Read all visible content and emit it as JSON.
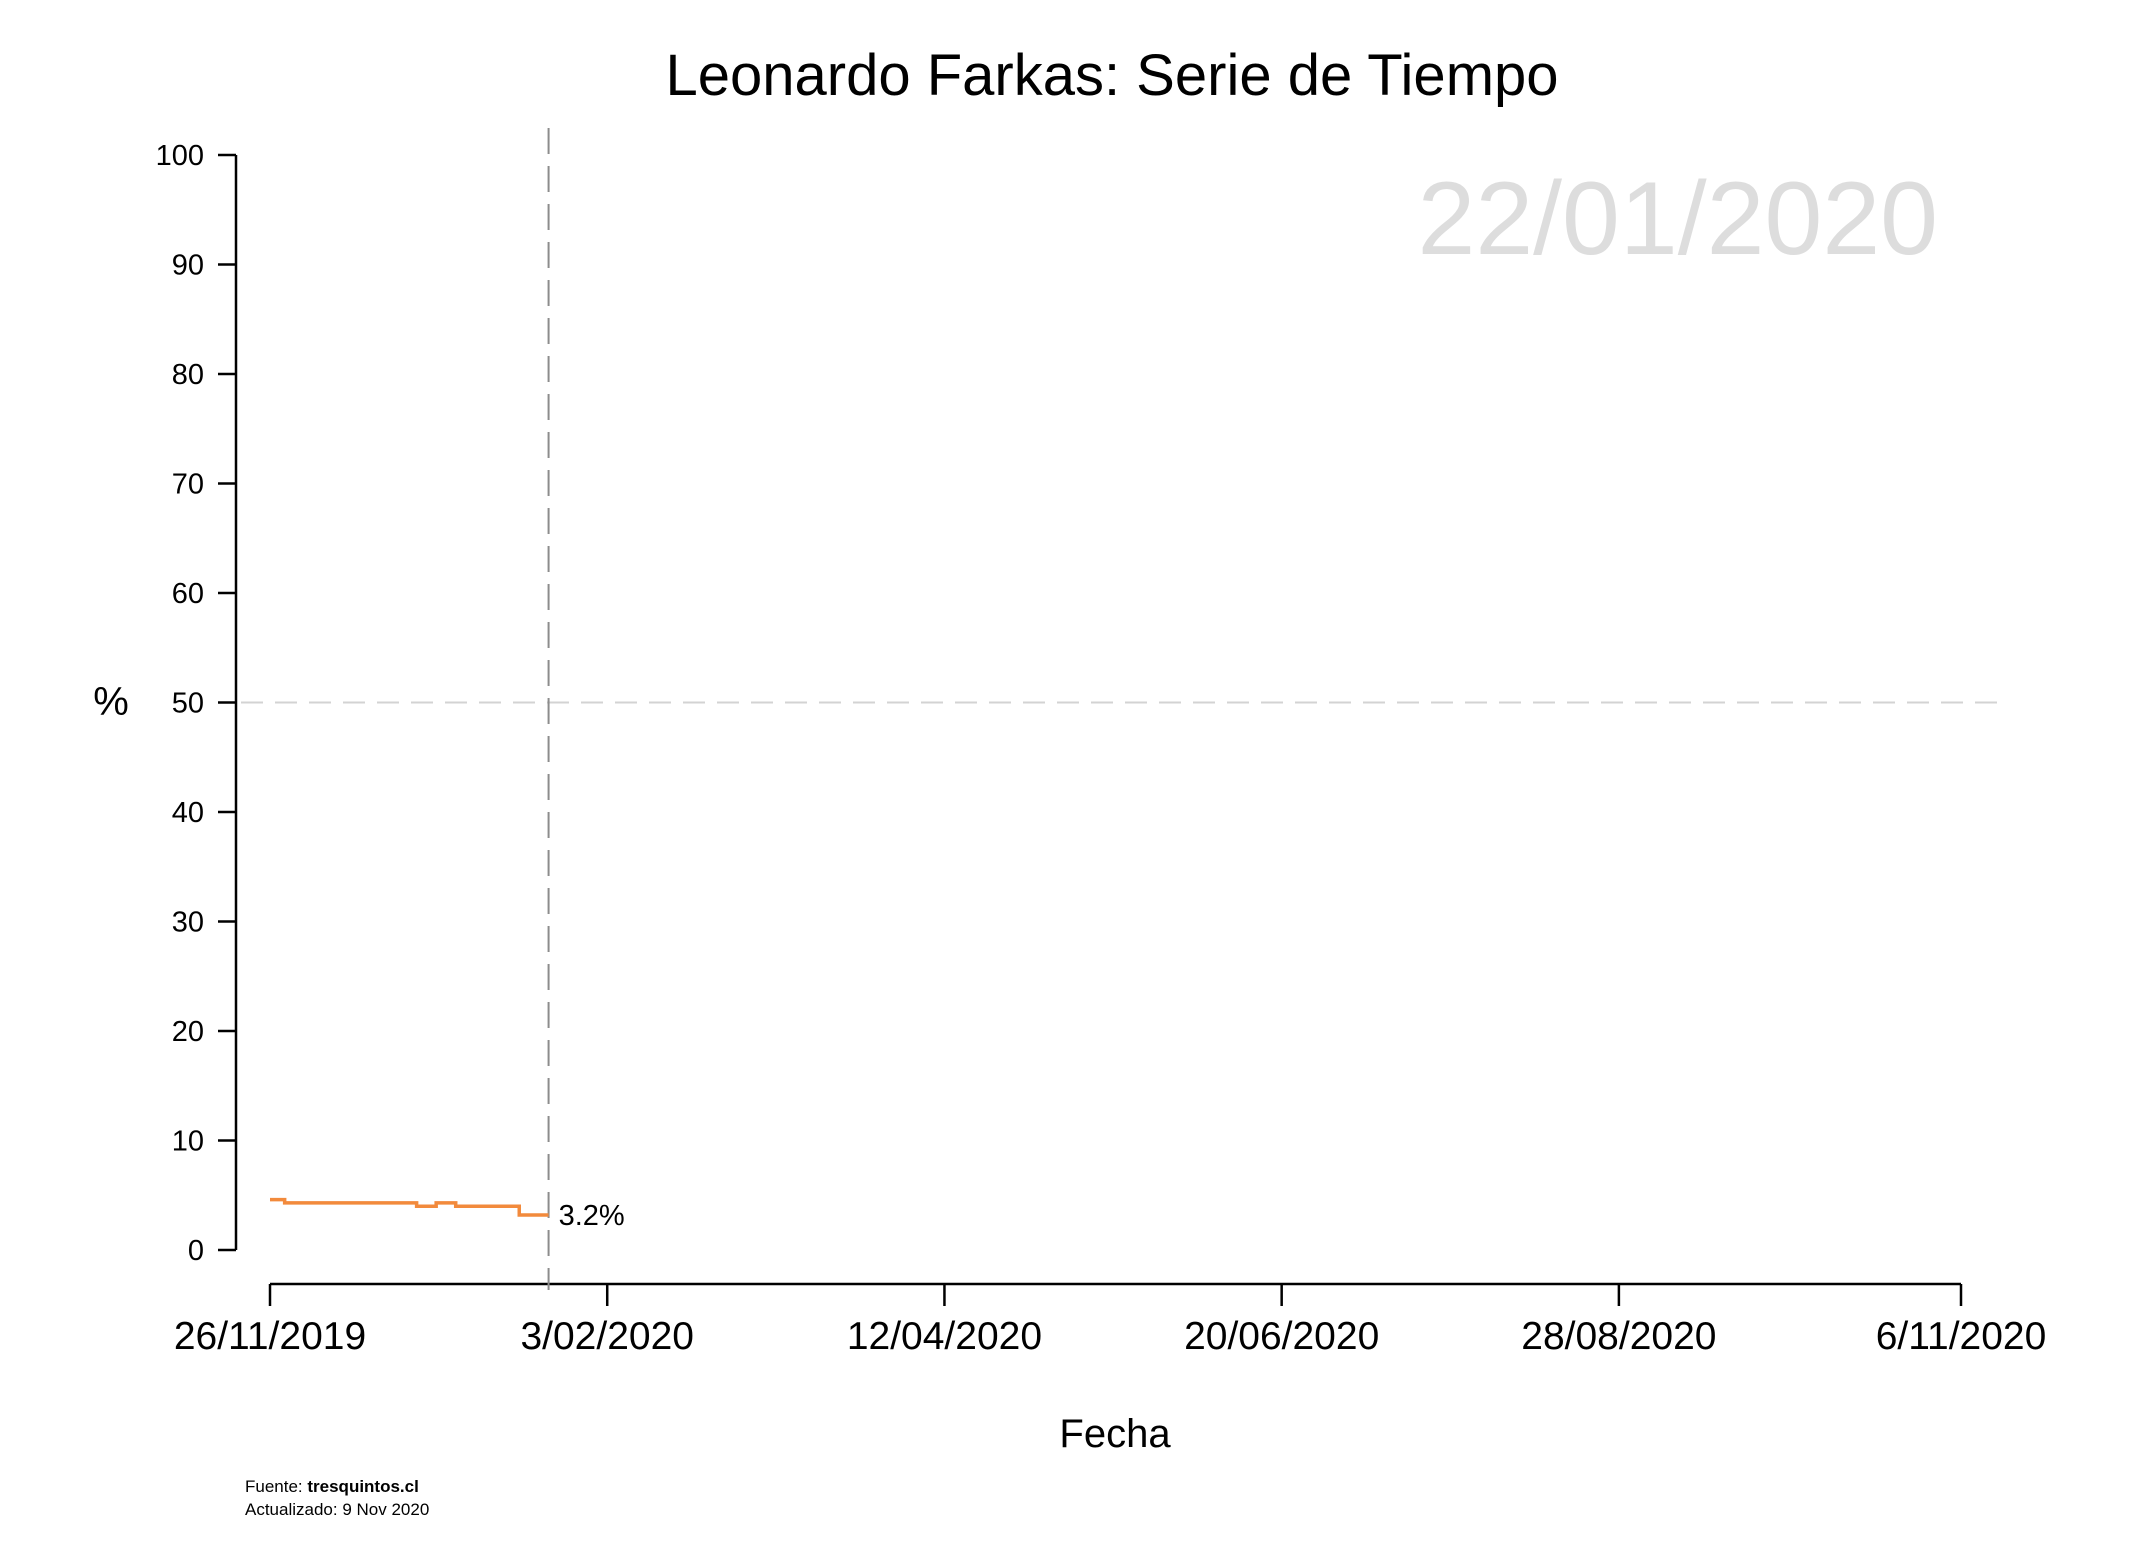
{
  "chart_data": {
    "type": "line",
    "title": "Leonardo Farkas: Serie de Tiempo",
    "xlabel": "Fecha",
    "ylabel": "%",
    "ylim": [
      0,
      100
    ],
    "y_ticks": [
      0,
      10,
      20,
      30,
      40,
      50,
      60,
      70,
      80,
      90,
      100
    ],
    "x_range": [
      "2019-11-26",
      "2020-11-06"
    ],
    "x_ticks": [
      "2019-11-26",
      "2020-02-03",
      "2020-04-12",
      "2020-06-20",
      "2020-08-28",
      "2020-11-06"
    ],
    "x_tick_labels": [
      "26/11/2019",
      "3/02/2020",
      "12/04/2020",
      "20/06/2020",
      "28/08/2020",
      "6/11/2020"
    ],
    "reference_line_y": 50,
    "current_date": "2020-01-22",
    "current_date_label": "22/01/2020",
    "end_label": "3.2%",
    "series": [
      {
        "color": "#f28a3c",
        "step": true,
        "x": [
          "2019-11-26",
          "2019-11-29",
          "2019-12-20",
          "2019-12-26",
          "2019-12-30",
          "2020-01-03",
          "2020-01-16",
          "2020-01-22"
        ],
        "y": [
          4.6,
          4.3,
          4.3,
          4.0,
          4.3,
          4.0,
          3.2,
          3.2
        ]
      }
    ],
    "grid": false,
    "legend": "none"
  },
  "footer": {
    "source_prefix": "Fuente: ",
    "source_name": "tresquintos.cl",
    "updated": "Actualizado: 9 Nov 2020"
  }
}
